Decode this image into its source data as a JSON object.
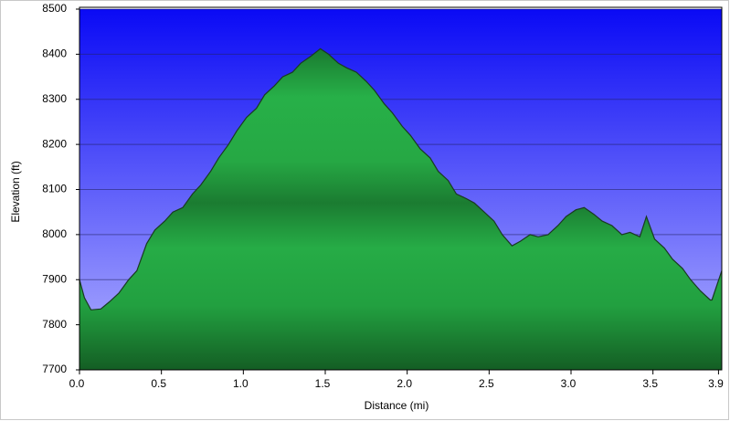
{
  "chart_data": {
    "type": "area",
    "xlabel": "Distance (mi)",
    "ylabel": "Elevation (ft)",
    "x": [
      0,
      0.03,
      0.07,
      0.13,
      0.18,
      0.24,
      0.3,
      0.35,
      0.41,
      0.46,
      0.52,
      0.57,
      0.63,
      0.69,
      0.74,
      0.8,
      0.85,
      0.91,
      0.96,
      1.02,
      1.08,
      1.13,
      1.19,
      1.24,
      1.3,
      1.35,
      1.41,
      1.47,
      1.52,
      1.58,
      1.63,
      1.69,
      1.75,
      1.8,
      1.86,
      1.91,
      1.97,
      2.02,
      2.08,
      2.14,
      2.19,
      2.25,
      2.3,
      2.36,
      2.41,
      2.47,
      2.53,
      2.58,
      2.64,
      2.69,
      2.75,
      2.8,
      2.86,
      2.92,
      2.97,
      3.03,
      3.08,
      3.14,
      3.19,
      3.25,
      3.31,
      3.36,
      3.42,
      3.46,
      3.51,
      3.57,
      3.62,
      3.68,
      3.73,
      3.79,
      3.85,
      3.86,
      3.92
    ],
    "values": [
      7900,
      7860,
      7833,
      7835,
      7850,
      7870,
      7900,
      7920,
      7980,
      8010,
      8030,
      8050,
      8060,
      8090,
      8110,
      8140,
      8170,
      8200,
      8230,
      8260,
      8280,
      8310,
      8330,
      8350,
      8360,
      8380,
      8395,
      8412,
      8400,
      8380,
      8370,
      8360,
      8340,
      8320,
      8290,
      8270,
      8240,
      8220,
      8190,
      8170,
      8140,
      8120,
      8090,
      8080,
      8070,
      8050,
      8030,
      8000,
      7975,
      7985,
      8000,
      7995,
      8000,
      8020,
      8040,
      8055,
      8060,
      8045,
      8030,
      8020,
      8000,
      8005,
      7995,
      8040,
      7990,
      7970,
      7945,
      7925,
      7900,
      7875,
      7855,
      7855,
      7920
    ],
    "color": "#22a845",
    "xlim": [
      0,
      3.92
    ],
    "ylim": [
      7700,
      8500
    ],
    "xticks": [
      {
        "value": 0,
        "label": "0.0"
      },
      0.5,
      {
        "value": 1,
        "label": "1.0"
      },
      1.5,
      {
        "value": 2,
        "label": "2.0"
      },
      2.5,
      {
        "value": 3,
        "label": "3.0"
      },
      3.5,
      3.9
    ],
    "yticks": [
      7700,
      7800,
      7900,
      8000,
      8100,
      8200,
      8300,
      8400,
      8500
    ],
    "grid": true
  }
}
